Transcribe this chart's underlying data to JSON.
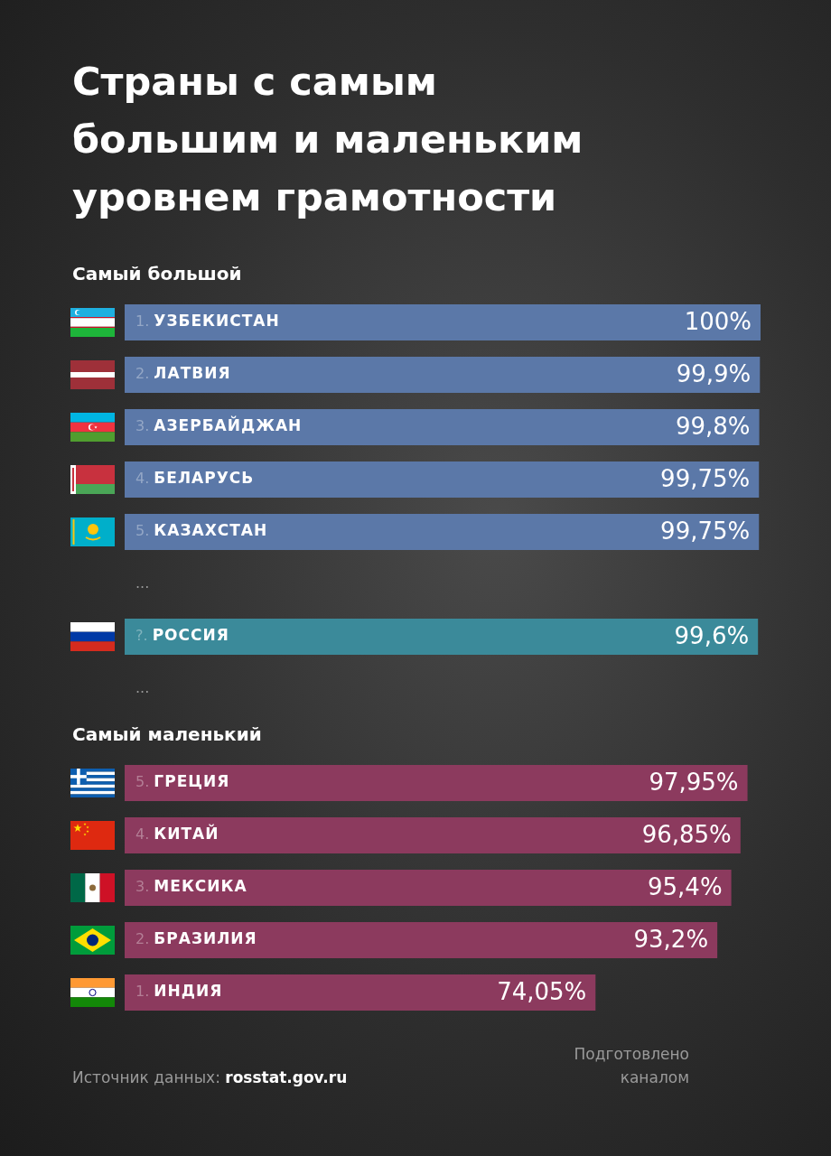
{
  "chart_data": [
    {
      "type": "bar",
      "orientation": "horizontal",
      "title": "Страны с самым большим и маленьким уровнем грамотности",
      "subtitle": "Самый большой",
      "categories": [
        "1. УЗБЕКИСТАН",
        "2. ЛАТВИЯ",
        "3. АЗЕРБАЙДЖАН",
        "4. БЕЛАРУСЬ",
        "5. КАЗАХСТАН",
        "...",
        "?. РОССИЯ",
        "..."
      ],
      "values": [
        100,
        99.9,
        99.8,
        99.75,
        99.75,
        null,
        99.6,
        null
      ],
      "colors": [
        "#5b78a8",
        "#5b78a8",
        "#5b78a8",
        "#5b78a8",
        "#5b78a8",
        null,
        "#3b8a9a",
        null
      ],
      "value_labels": [
        "100%",
        "99,9%",
        "99,8%",
        "99,75%",
        "99,75%",
        null,
        "99,6%",
        null
      ],
      "tick_labels": "y"
    },
    {
      "type": "bar",
      "orientation": "horizontal",
      "subtitle": "Самый маленький",
      "categories": [
        "5. ГРЕЦИЯ",
        "4. КИТАЙ",
        "3. МЕКСИКА",
        "2. БРАЗИЛИЯ",
        "1. ИНДИЯ"
      ],
      "values": [
        97.95,
        96.85,
        95.4,
        93.2,
        74.05
      ],
      "color": "#8c3a5e",
      "value_labels": [
        "97,95%",
        "96,85%",
        "95,4%",
        "93,2%",
        "74,05%"
      ],
      "tick_labels": "y",
      "annotations": [
        "Источник данных: rosstat.gov.ru",
        "Подготовлено каналом"
      ]
    }
  ]
}
